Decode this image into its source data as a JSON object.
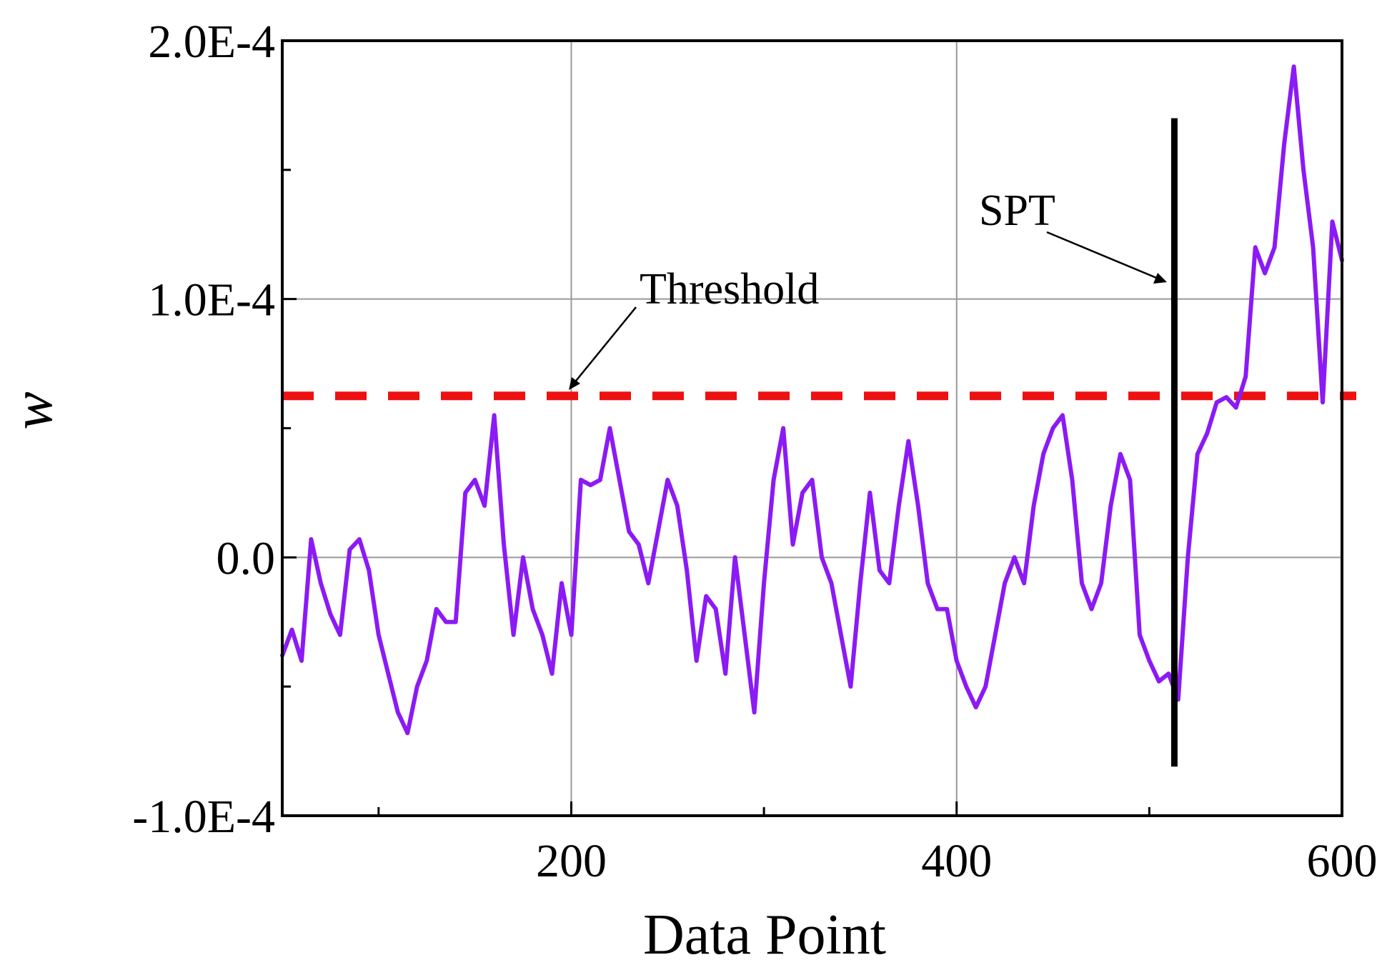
{
  "chart_data": {
    "type": "line",
    "title": "",
    "xlabel": "Data Point",
    "ylabel": "w",
    "xlim": [
      50,
      600
    ],
    "ylim": [
      -0.0001,
      0.0002
    ],
    "x_ticks": [
      200,
      400,
      600
    ],
    "x_tick_labels": [
      "200",
      "400",
      "600"
    ],
    "y_ticks": [
      -0.0001,
      0,
      0.0001,
      0.0002
    ],
    "y_tick_labels": [
      "-1.0E-4",
      "0.0",
      "1.0E-4",
      "2.0E-4"
    ],
    "grid": true,
    "series": [
      {
        "name": "",
        "color": "#8B1AF5",
        "x": [
          50,
          55,
          60,
          65,
          70,
          75,
          80,
          85,
          90,
          95,
          100,
          105,
          110,
          115,
          120,
          125,
          130,
          135,
          140,
          145,
          150,
          155,
          160,
          165,
          170,
          175,
          180,
          185,
          190,
          195,
          200,
          205,
          210,
          215,
          220,
          225,
          230,
          235,
          240,
          245,
          250,
          255,
          260,
          265,
          270,
          275,
          280,
          285,
          290,
          295,
          300,
          305,
          310,
          315,
          320,
          325,
          330,
          335,
          340,
          345,
          350,
          355,
          360,
          365,
          370,
          375,
          380,
          385,
          390,
          395,
          400,
          405,
          410,
          415,
          420,
          425,
          430,
          435,
          440,
          445,
          450,
          455,
          460,
          465,
          470,
          475,
          480,
          485,
          490,
          495,
          500,
          505,
          510,
          515,
          520,
          525,
          530,
          535,
          540,
          545,
          550,
          555,
          560,
          565,
          570,
          575,
          580,
          585,
          590,
          595,
          600
        ],
        "values": [
          -3.8e-05,
          -2.8e-05,
          -4e-05,
          7e-06,
          -1e-05,
          -2.2e-05,
          -3e-05,
          3e-06,
          7e-06,
          -5e-06,
          -3e-05,
          -4.5e-05,
          -6e-05,
          -6.8e-05,
          -5e-05,
          -4e-05,
          -2e-05,
          -2.5e-05,
          -2.5e-05,
          2.5e-05,
          3e-05,
          2e-05,
          5.5e-05,
          5e-06,
          -3e-05,
          0.0,
          -2e-05,
          -3e-05,
          -4.5e-05,
          -1e-05,
          -3e-05,
          3e-05,
          2.8e-05,
          3e-05,
          5e-05,
          3e-05,
          1e-05,
          5e-06,
          -1e-05,
          1e-05,
          3e-05,
          2e-05,
          -5e-06,
          -4e-05,
          -1.5e-05,
          -2e-05,
          -4.5e-05,
          0.0,
          -3e-05,
          -6e-05,
          -1e-05,
          3e-05,
          5e-05,
          5e-06,
          2.5e-05,
          3e-05,
          0.0,
          -1e-05,
          -3e-05,
          -5e-05,
          -1e-05,
          2.5e-05,
          -5e-06,
          -1e-05,
          2e-05,
          4.5e-05,
          2e-05,
          -1e-05,
          -2e-05,
          -2e-05,
          -4e-05,
          -5e-05,
          -5.8e-05,
          -5e-05,
          -3e-05,
          -1e-05,
          0.0,
          -1e-05,
          2e-05,
          4e-05,
          5e-05,
          5.5e-05,
          3e-05,
          -1e-05,
          -2e-05,
          -1e-05,
          2e-05,
          4e-05,
          3e-05,
          -3e-05,
          -4e-05,
          -4.8e-05,
          -4.5e-05,
          -5.5e-05,
          0.0,
          4e-05,
          4.8e-05,
          6e-05,
          6.2e-05,
          5.8e-05,
          7e-05,
          0.00012,
          0.00011,
          0.00012,
          0.00016,
          0.00019,
          0.00015,
          0.00012,
          6e-05,
          0.00013,
          0.000115
        ]
      }
    ],
    "threshold": {
      "y": 6.25e-05,
      "color": "#EE1111",
      "label": "Threshold"
    },
    "change_marker": {
      "x": 513,
      "y_from": -8.1e-05,
      "y_to": 0.00017,
      "color": "#000000",
      "label": "SPT"
    }
  }
}
